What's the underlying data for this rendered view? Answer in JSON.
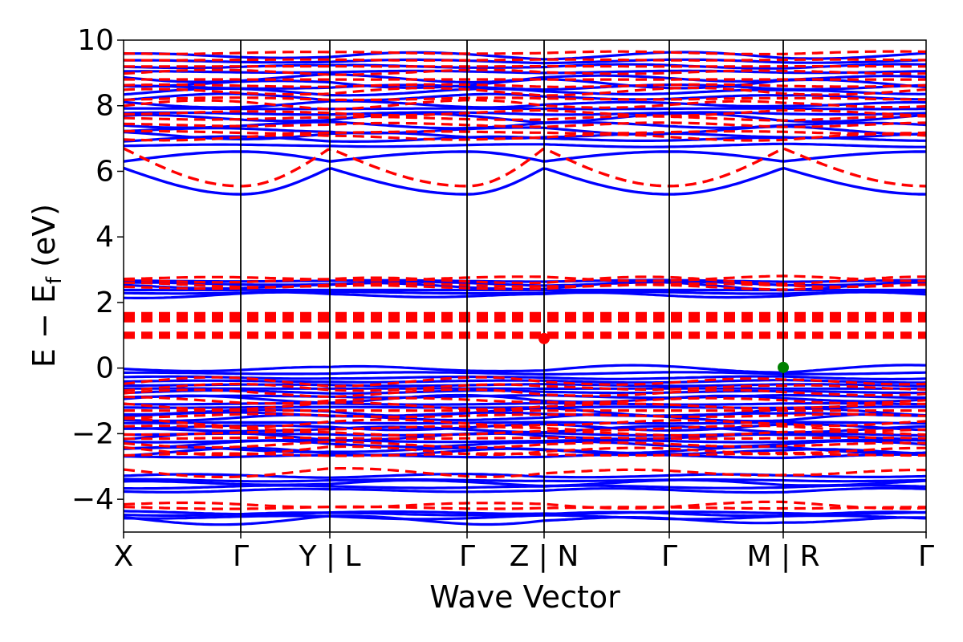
{
  "chart_data": {
    "type": "line",
    "title": "",
    "xlabel": "Wave Vector",
    "ylabel": "E − E",
    "ylabel_sub": "f",
    "ylabel_unit": " (eV)",
    "ylim": [
      -5,
      10
    ],
    "yticks": [
      -4,
      -2,
      0,
      2,
      4,
      6,
      8,
      10
    ],
    "ytick_labels": [
      "−4",
      "−2",
      "0",
      "2",
      "4",
      "6",
      "8",
      "10"
    ],
    "kpath": {
      "x_range": [
        0,
        1
      ],
      "positions": [
        0,
        0.146,
        0.257,
        0.428,
        0.524,
        0.68,
        0.822,
        1.0
      ],
      "tick_labels": [
        "X",
        "Γ",
        "Y | L",
        "Γ",
        "Z | N",
        "Γ",
        "M | R",
        "Γ"
      ],
      "boundary_indices": [
        2,
        4,
        6
      ],
      "gamma_indices": [
        1,
        3,
        5,
        7
      ]
    },
    "grid": false,
    "series": [
      {
        "spin": "up",
        "color": "#0000ff",
        "style": "solid",
        "conduction_upper": {
          "range": [
            6.8,
            9.5
          ],
          "count": 18
        },
        "conduction_lower": [
          {
            "at_boundary": 6.3,
            "at_gamma": 6.6
          },
          {
            "at_boundary": 6.1,
            "at_gamma": 5.3
          }
        ],
        "mid_band": {
          "range": [
            2.2,
            2.65
          ],
          "count": 6
        },
        "valence_top": {
          "range": [
            -2.7,
            -0.05
          ],
          "count": 24
        },
        "valence_lower": {
          "range": [
            -3.75,
            -3.3
          ],
          "count": 5
        },
        "valence_bottom": {
          "range": [
            -4.6,
            -4.4
          ],
          "count": 4
        }
      },
      {
        "spin": "down",
        "color": "#ff0000",
        "style": "dashed",
        "conduction_upper": {
          "range": [
            7.0,
            9.6
          ],
          "count": 14
        },
        "conduction_lower": [
          {
            "at_boundary": 6.7,
            "at_gamma": 5.55
          }
        ],
        "mid_band": {
          "range": [
            2.45,
            2.75
          ],
          "count": 4
        },
        "flat_bands": [
          1.0,
          1.5,
          1.6
        ],
        "valence_top": {
          "range": [
            -2.65,
            -0.45
          ],
          "count": 14
        },
        "valence_lower": {
          "range": [
            -3.15,
            -3.15
          ],
          "count": 1
        },
        "valence_bottom": {
          "range": [
            -4.25,
            -4.15
          ],
          "count": 2
        }
      }
    ],
    "markers": [
      {
        "name": "cbm",
        "color": "#ff0000",
        "x": 0.524,
        "y": 0.9
      },
      {
        "name": "vbm",
        "color": "#008000",
        "x": 0.822,
        "y": 0.02
      }
    ]
  }
}
